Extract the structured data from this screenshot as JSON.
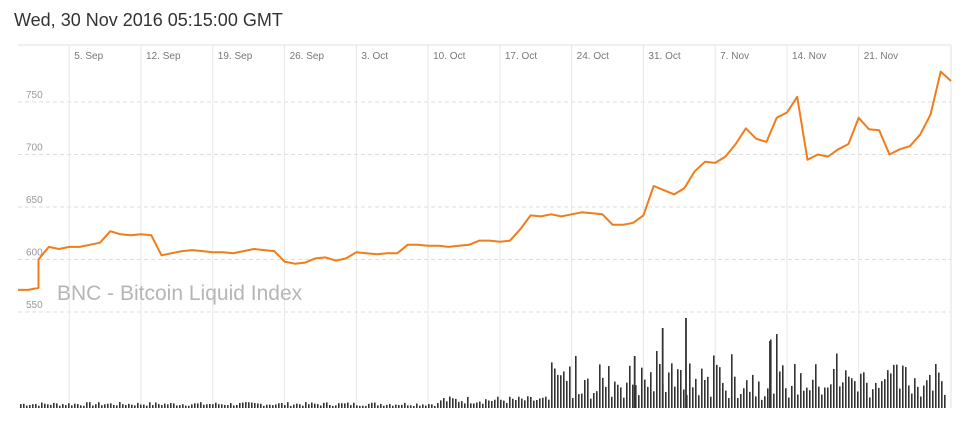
{
  "header": {
    "datetime": "Wed, 30 Nov 2016 05:15:00 GMT"
  },
  "colors": {
    "line": "#f07d19",
    "volume": "#333333",
    "grid": "#dddddd"
  },
  "chart_data": {
    "type": "line",
    "title": "BNC - Bitcoin Liquid Index",
    "x_tick_labels": [
      "5. Sep",
      "12. Sep",
      "19. Sep",
      "26. Sep",
      "3. Oct",
      "10. Oct",
      "17. Oct",
      "24. Oct",
      "31. Oct",
      "7. Nov",
      "14. Nov",
      "21. Nov"
    ],
    "x_ticks": [
      "2016-09-05",
      "2016-09-12",
      "2016-09-19",
      "2016-09-26",
      "2016-10-03",
      "2016-10-10",
      "2016-10-17",
      "2016-10-24",
      "2016-10-31",
      "2016-11-07",
      "2016-11-14",
      "2016-11-21"
    ],
    "xlim": [
      "2016-08-31",
      "2016-11-30"
    ],
    "y_ticks": [
      550,
      600,
      650,
      700,
      750
    ],
    "ylim": [
      540,
      790
    ],
    "grid": true,
    "series": [
      {
        "values": [
          [
            "2016-08-31",
            571
          ],
          [
            "2016-09-01",
            571
          ],
          [
            "2016-09-02",
            573
          ],
          [
            "2016-09-02",
            600
          ],
          [
            "2016-09-03",
            612
          ],
          [
            "2016-09-04",
            610
          ],
          [
            "2016-09-05",
            612
          ],
          [
            "2016-09-06",
            612
          ],
          [
            "2016-09-07",
            614
          ],
          [
            "2016-09-08",
            616
          ],
          [
            "2016-09-09",
            627
          ],
          [
            "2016-09-10",
            624
          ],
          [
            "2016-09-11",
            623
          ],
          [
            "2016-09-12",
            624
          ],
          [
            "2016-09-13",
            623
          ],
          [
            "2016-09-14",
            604
          ],
          [
            "2016-09-15",
            606
          ],
          [
            "2016-09-16",
            608
          ],
          [
            "2016-09-17",
            609
          ],
          [
            "2016-09-18",
            608
          ],
          [
            "2016-09-19",
            607
          ],
          [
            "2016-09-20",
            607
          ],
          [
            "2016-09-21",
            606
          ],
          [
            "2016-09-22",
            608
          ],
          [
            "2016-09-23",
            610
          ],
          [
            "2016-09-24",
            609
          ],
          [
            "2016-09-25",
            608
          ],
          [
            "2016-09-26",
            598
          ],
          [
            "2016-09-27",
            596
          ],
          [
            "2016-09-28",
            597
          ],
          [
            "2016-09-29",
            601
          ],
          [
            "2016-09-30",
            602
          ],
          [
            "2016-10-01",
            599
          ],
          [
            "2016-10-02",
            601
          ],
          [
            "2016-10-03",
            607
          ],
          [
            "2016-10-04",
            606
          ],
          [
            "2016-10-05",
            605
          ],
          [
            "2016-10-06",
            606
          ],
          [
            "2016-10-07",
            606
          ],
          [
            "2016-10-08",
            614
          ],
          [
            "2016-10-09",
            614
          ],
          [
            "2016-10-10",
            613
          ],
          [
            "2016-10-11",
            613
          ],
          [
            "2016-10-12",
            612
          ],
          [
            "2016-10-13",
            613
          ],
          [
            "2016-10-14",
            614
          ],
          [
            "2016-10-15",
            618
          ],
          [
            "2016-10-16",
            618
          ],
          [
            "2016-10-17",
            617
          ],
          [
            "2016-10-18",
            618
          ],
          [
            "2016-10-19",
            629
          ],
          [
            "2016-10-20",
            642
          ],
          [
            "2016-10-21",
            641
          ],
          [
            "2016-10-22",
            643
          ],
          [
            "2016-10-23",
            641
          ],
          [
            "2016-10-24",
            643
          ],
          [
            "2016-10-25",
            645
          ],
          [
            "2016-10-26",
            644
          ],
          [
            "2016-10-27",
            643
          ],
          [
            "2016-10-28",
            633
          ],
          [
            "2016-10-29",
            633
          ],
          [
            "2016-10-30",
            635
          ],
          [
            "2016-10-31",
            642
          ],
          [
            "2016-11-01",
            670
          ],
          [
            "2016-11-02",
            666
          ],
          [
            "2016-11-03",
            662
          ],
          [
            "2016-11-04",
            668
          ],
          [
            "2016-11-05",
            684
          ],
          [
            "2016-11-06",
            693
          ],
          [
            "2016-11-07",
            692
          ],
          [
            "2016-11-08",
            698
          ],
          [
            "2016-11-09",
            710
          ],
          [
            "2016-11-10",
            725
          ],
          [
            "2016-11-11",
            715
          ],
          [
            "2016-11-12",
            712
          ],
          [
            "2016-11-13",
            735
          ],
          [
            "2016-11-14",
            740
          ],
          [
            "2016-11-15",
            755
          ],
          [
            "2016-11-16",
            695
          ],
          [
            "2016-11-17",
            700
          ],
          [
            "2016-11-18",
            698
          ],
          [
            "2016-11-19",
            705
          ],
          [
            "2016-11-20",
            710
          ],
          [
            "2016-11-21",
            735
          ],
          [
            "2016-11-22",
            724
          ],
          [
            "2016-11-23",
            723
          ],
          [
            "2016-11-24",
            700
          ],
          [
            "2016-11-25",
            705
          ],
          [
            "2016-11-26",
            708
          ],
          [
            "2016-11-27",
            719
          ],
          [
            "2016-11-28",
            738
          ],
          [
            "2016-11-29",
            779
          ],
          [
            "2016-11-30",
            770
          ]
        ]
      }
    ]
  }
}
